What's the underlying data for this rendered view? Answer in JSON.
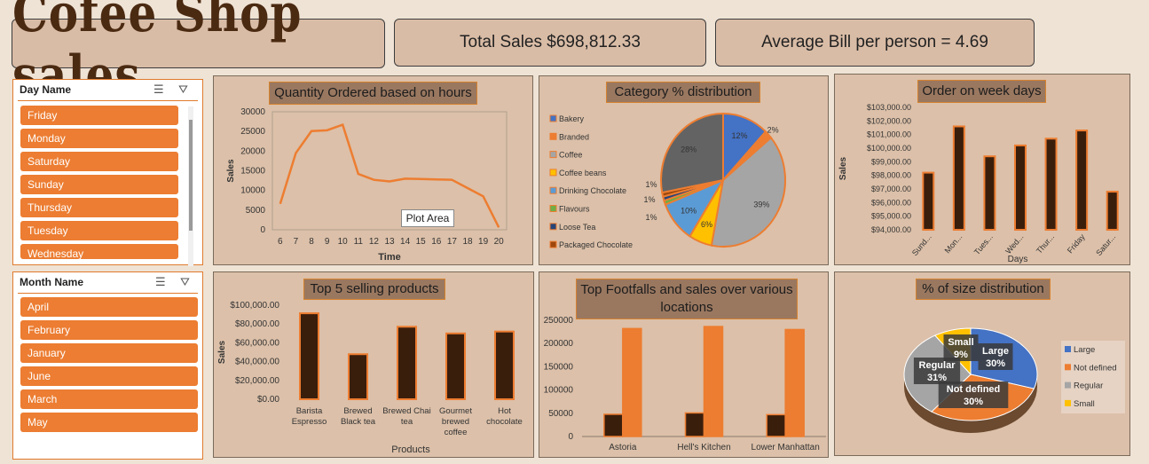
{
  "header": {
    "title": "Cofee Shop sales",
    "total_sales": "Total Sales $698,812.33",
    "average_bill": "Average Bill per person = 4.69"
  },
  "slicers": {
    "day": {
      "title": "Day Name",
      "items": [
        "Friday",
        "Monday",
        "Saturday",
        "Sunday",
        "Thursday",
        "Tuesday",
        "Wednesday"
      ]
    },
    "month": {
      "title": "Month Name",
      "items": [
        "April",
        "February",
        "January",
        "June",
        "March",
        "May"
      ]
    }
  },
  "tooltip": "Plot Area",
  "colors": {
    "line": "#ed7d31",
    "bar_fill": "#3a1e0c",
    "bar_outline": "#ed7d31",
    "panel_bg": "#dcc0a9",
    "title_bg": "#9a7860"
  },
  "chart_data": [
    {
      "id": "hours",
      "type": "line",
      "title": "Quantity Ordered based on hours",
      "xlabel": "Time",
      "ylabel": "Sales",
      "x": [
        6,
        7,
        8,
        9,
        10,
        11,
        12,
        13,
        14,
        15,
        16,
        17,
        18,
        19,
        20
      ],
      "y": [
        6600,
        19500,
        25100,
        25300,
        26700,
        14200,
        12700,
        12300,
        13000,
        12900,
        12800,
        12700,
        10600,
        8500,
        600
      ],
      "ylim": [
        0,
        30000
      ],
      "yticks": [
        0,
        5000,
        10000,
        15000,
        20000,
        25000,
        30000
      ]
    },
    {
      "id": "category",
      "type": "pie",
      "title": "Category % distribution",
      "legend_position": "left",
      "slices": [
        {
          "label": "Bakery",
          "value": 12,
          "label_text": "12%",
          "color": "#4472c4"
        },
        {
          "label": "Branded",
          "value": 2,
          "label_text": "2%",
          "color": "#ed7d31"
        },
        {
          "label": "Coffee",
          "value": 39,
          "label_text": "39%",
          "color": "#a5a5a5"
        },
        {
          "label": "Coffee beans",
          "value": 6,
          "label_text": "6%",
          "color": "#ffc000"
        },
        {
          "label": "Drinking Chocolate",
          "value": 10,
          "label_text": "10%",
          "color": "#5b9bd5"
        },
        {
          "label": "Flavours",
          "value": 1,
          "label_text": "1%",
          "color": "#70ad47"
        },
        {
          "label": "Loose Tea",
          "value": 1,
          "label_text": "1%",
          "color": "#264478"
        },
        {
          "label": "Packaged Chocolate",
          "value": 1,
          "label_text": "1%",
          "color": "#9e480e"
        },
        {
          "label": "",
          "value": 28,
          "label_text": "28%",
          "color": "#636363"
        }
      ]
    },
    {
      "id": "weekdays",
      "type": "bar",
      "title": "Order on week days",
      "xlabel": "Days",
      "ylabel": "Sales",
      "categories": [
        "Sunday",
        "Monday",
        "Tuesday",
        "Wednesday",
        "Thursday",
        "Friday",
        "Saturday"
      ],
      "tick_labels": [
        "Sund...",
        "Mon...",
        "Tues...",
        "Wed...",
        "Thur...",
        "Friday",
        "Satur..."
      ],
      "values": [
        98200,
        101600,
        99400,
        100200,
        100700,
        101300,
        96800
      ],
      "ylim": [
        94000,
        103000
      ],
      "yticks": [
        "$94,000.00",
        "$95,000.00",
        "$96,000.00",
        "$97,000.00",
        "$98,000.00",
        "$99,000.00",
        "$100,000.00",
        "$101,000.00",
        "$102,000.00",
        "$103,000.00"
      ]
    },
    {
      "id": "top5",
      "type": "bar",
      "title": "Top 5 selling products",
      "xlabel": "Products",
      "ylabel": "Sales",
      "categories": [
        "Barista Espresso",
        "Brewed Black tea",
        "Brewed Chai tea",
        "Gourmet brewed coffee",
        "Hot chocolate"
      ],
      "category_lines": [
        [
          "Barista",
          "Espresso"
        ],
        [
          "Brewed",
          "Black tea"
        ],
        [
          "Brewed Chai",
          "tea"
        ],
        [
          "Gourmet",
          "brewed",
          "coffee"
        ],
        [
          "Hot",
          "chocolate"
        ]
      ],
      "values": [
        91400,
        47900,
        77100,
        70000,
        72000
      ],
      "ylim": [
        0,
        100000
      ],
      "yticks": [
        "$0.00",
        "$20,000.00",
        "$40,000.00",
        "$60,000.00",
        "$80,000.00",
        "$100,000.00"
      ]
    },
    {
      "id": "locations",
      "type": "bar",
      "title": "Top Footfalls and sales over various locations",
      "title_lines": [
        "Top Footfalls and sales over various",
        "locations"
      ],
      "categories": [
        "Astoria",
        "Hell's Kitchen",
        "Lower Manhattan"
      ],
      "series": [
        {
          "values": [
            47800,
            50700,
            47000
          ],
          "color": "#3a1e0c"
        },
        {
          "values": [
            232200,
            236500,
            230100
          ],
          "color": "#ed7d31"
        }
      ],
      "ylim": [
        0,
        250000
      ],
      "yticks": [
        0,
        50000,
        100000,
        150000,
        200000,
        250000
      ]
    },
    {
      "id": "size",
      "type": "pie",
      "title": "% of size distribution",
      "legend_position": "right",
      "slices": [
        {
          "label": "Large",
          "value": 30,
          "label_text": "Large\n30%",
          "color": "#4472c4"
        },
        {
          "label": "Not defined",
          "value": 30,
          "label_text": "Not defined\n30%",
          "color": "#ed7d31"
        },
        {
          "label": "Regular",
          "value": 31,
          "label_text": "Regular\n31%",
          "color": "#a5a5a5"
        },
        {
          "label": "Small",
          "value": 9,
          "label_text": "Small\n9%",
          "color": "#ffc000"
        }
      ]
    }
  ]
}
